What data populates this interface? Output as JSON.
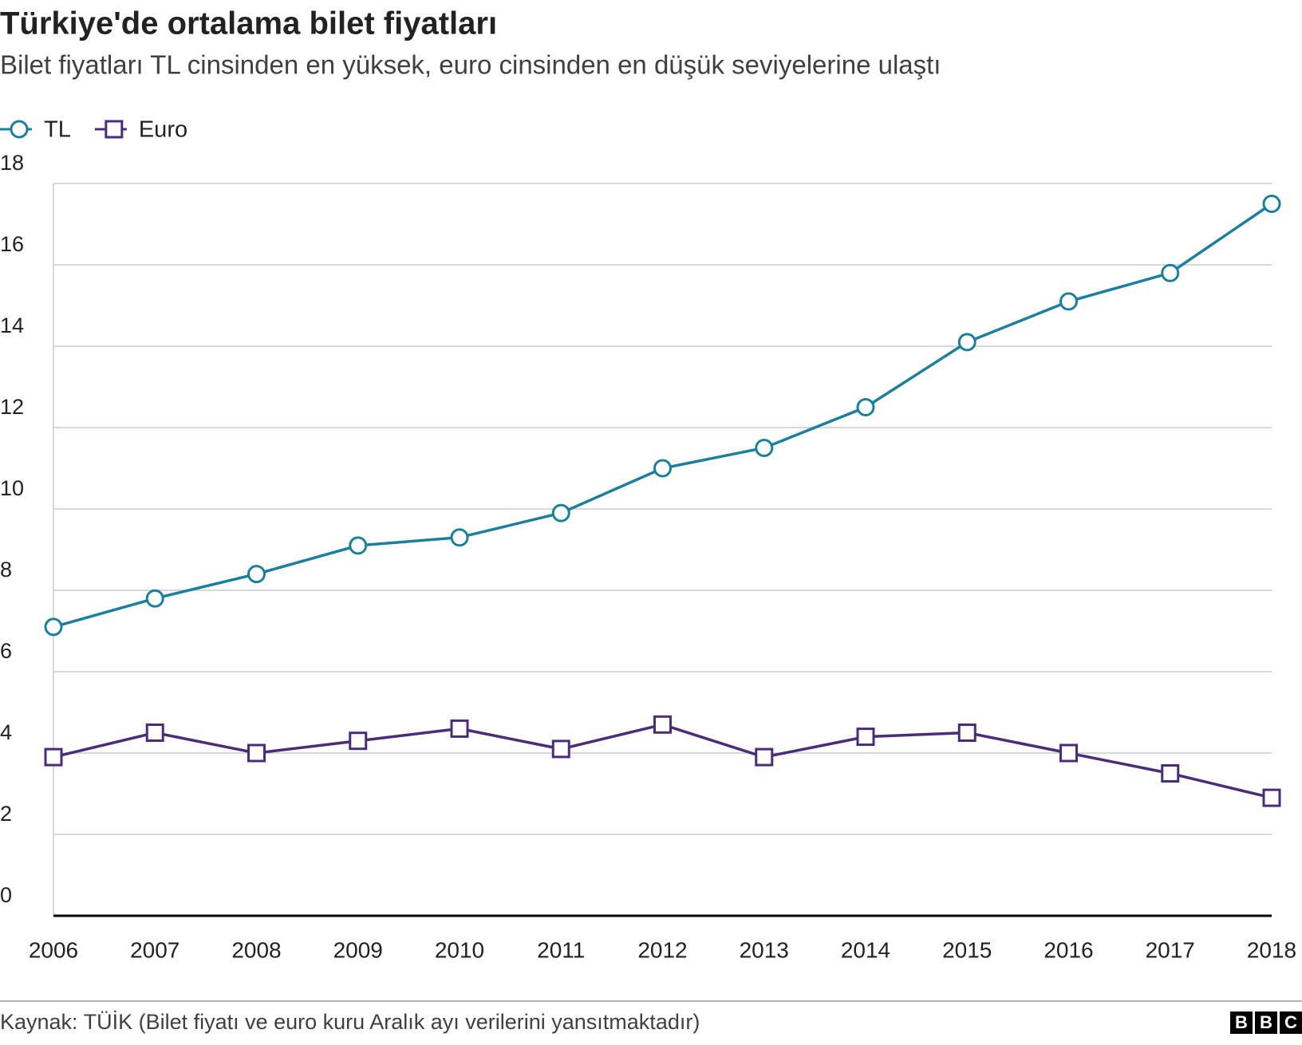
{
  "chart_data": {
    "type": "line",
    "title": "Türkiye'de ortalama bilet fiyatları",
    "subtitle": "Bilet fiyatları TL cinsinden en yüksek, euro cinsinden en düşük seviyelerine ulaştı",
    "x": [
      2006,
      2007,
      2008,
      2009,
      2010,
      2011,
      2012,
      2013,
      2014,
      2015,
      2016,
      2017,
      2018
    ],
    "series": [
      {
        "name": "TL",
        "color": "#1b7f9e",
        "marker": "circle",
        "values": [
          7.1,
          7.8,
          8.4,
          9.1,
          9.3,
          9.9,
          11.0,
          11.5,
          12.5,
          14.1,
          15.1,
          15.8,
          17.5
        ]
      },
      {
        "name": "Euro",
        "color": "#4b2c7a",
        "marker": "square",
        "values": [
          3.9,
          4.5,
          4.0,
          4.3,
          4.6,
          4.1,
          4.7,
          3.9,
          4.4,
          4.5,
          4.0,
          3.5,
          2.9
        ]
      }
    ],
    "xlim": [
      2006,
      2018
    ],
    "xticks": [
      2006,
      2007,
      2008,
      2009,
      2010,
      2011,
      2012,
      2013,
      2014,
      2015,
      2016,
      2017,
      2018
    ],
    "ylim": [
      0,
      18
    ],
    "yticks": [
      0,
      2,
      4,
      6,
      8,
      10,
      12,
      14,
      16,
      18
    ],
    "grid": true,
    "legend": "top-left",
    "source": "Kaynak: TÜİK (Bilet fiyatı ve euro kuru Aralık ayı verilerini yansıtmaktadır)",
    "logo": [
      "B",
      "B",
      "C"
    ]
  }
}
